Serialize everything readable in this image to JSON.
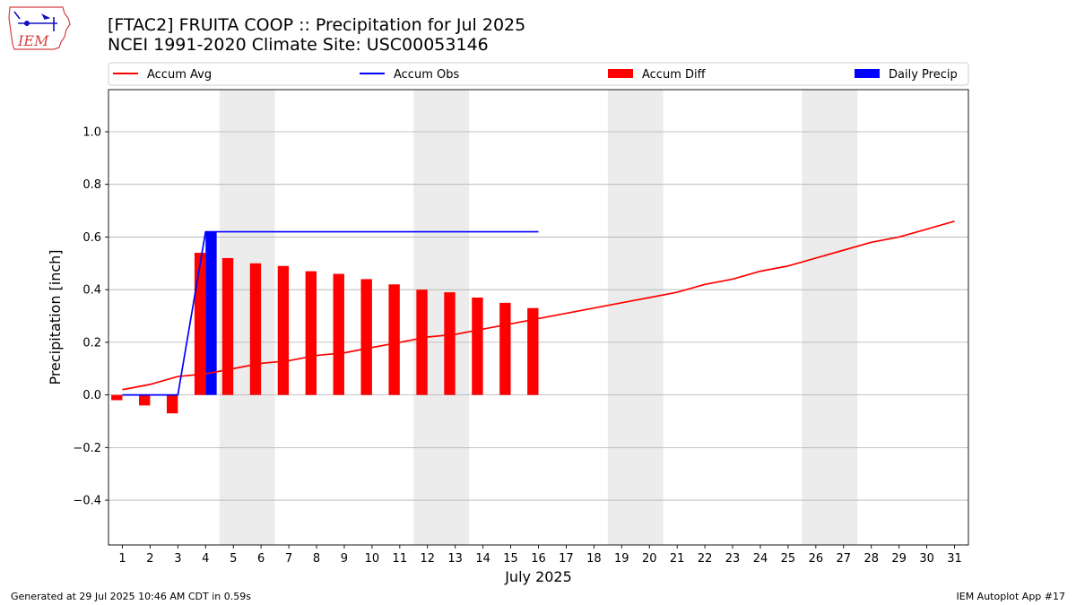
{
  "logo": {
    "text": "IEM"
  },
  "header": {
    "title_line1": "[FTAC2] FRUITA COOP :: Precipitation for Jul 2025",
    "title_line2": "NCEI 1991-2020 Climate Site: USC00053146"
  },
  "footer": {
    "left": "Generated at 29 Jul 2025 10:46 AM CDT in 0.59s",
    "right": "IEM Autoplot App #17"
  },
  "chart_data": {
    "type": "bar",
    "xlabel": "July 2025",
    "ylabel": "Precipitation [inch]",
    "ylim": [
      -0.57,
      1.16
    ],
    "xlim": [
      0.5,
      31.5
    ],
    "yticks": [
      -0.4,
      -0.2,
      0.0,
      0.2,
      0.4,
      0.6,
      0.8,
      1.0
    ],
    "ytick_labels": [
      "−0.4",
      "−0.2",
      "0.0",
      "0.2",
      "0.4",
      "0.6",
      "0.8",
      "1.0"
    ],
    "days": [
      1,
      2,
      3,
      4,
      5,
      6,
      7,
      8,
      9,
      10,
      11,
      12,
      13,
      14,
      15,
      16,
      17,
      18,
      19,
      20,
      21,
      22,
      23,
      24,
      25,
      26,
      27,
      28,
      29,
      30,
      31
    ],
    "grid": "horizontal",
    "legend_position": "top",
    "weekend_spans": [
      [
        5,
        6
      ],
      [
        12,
        13
      ],
      [
        19,
        20
      ],
      [
        26,
        27
      ]
    ],
    "weekend_color": "#ececec",
    "series": [
      {
        "name": "Accum Avg",
        "kind": "line",
        "color": "#ff0000",
        "x": [
          1,
          2,
          3,
          4,
          5,
          6,
          7,
          8,
          9,
          10,
          11,
          12,
          13,
          14,
          15,
          16,
          17,
          18,
          19,
          20,
          21,
          22,
          23,
          24,
          25,
          26,
          27,
          28,
          29,
          30,
          31
        ],
        "values": [
          0.02,
          0.04,
          0.07,
          0.08,
          0.1,
          0.12,
          0.13,
          0.15,
          0.16,
          0.18,
          0.2,
          0.22,
          0.23,
          0.25,
          0.27,
          0.29,
          0.31,
          0.33,
          0.35,
          0.37,
          0.39,
          0.42,
          0.44,
          0.47,
          0.49,
          0.52,
          0.55,
          0.58,
          0.6,
          0.63,
          0.66
        ]
      },
      {
        "name": "Accum Obs",
        "kind": "line",
        "color": "#0000ff",
        "x": [
          1,
          2,
          3,
          4,
          5,
          6,
          7,
          8,
          9,
          10,
          11,
          12,
          13,
          14,
          15,
          16
        ],
        "values": [
          0,
          0,
          0,
          0.62,
          0.62,
          0.62,
          0.62,
          0.62,
          0.62,
          0.62,
          0.62,
          0.62,
          0.62,
          0.62,
          0.62,
          0.62
        ]
      },
      {
        "name": "Accum Diff",
        "kind": "bar",
        "color": "#ff0000",
        "x": [
          1,
          2,
          3,
          4,
          5,
          6,
          7,
          8,
          9,
          10,
          11,
          12,
          13,
          14,
          15,
          16
        ],
        "values": [
          -0.02,
          -0.04,
          -0.07,
          0.54,
          0.52,
          0.5,
          0.49,
          0.47,
          0.46,
          0.44,
          0.42,
          0.4,
          0.39,
          0.37,
          0.35,
          0.33
        ]
      },
      {
        "name": "Daily Precip",
        "kind": "bar",
        "color": "#0000ff",
        "x": [
          4
        ],
        "values": [
          0.62
        ]
      }
    ]
  }
}
